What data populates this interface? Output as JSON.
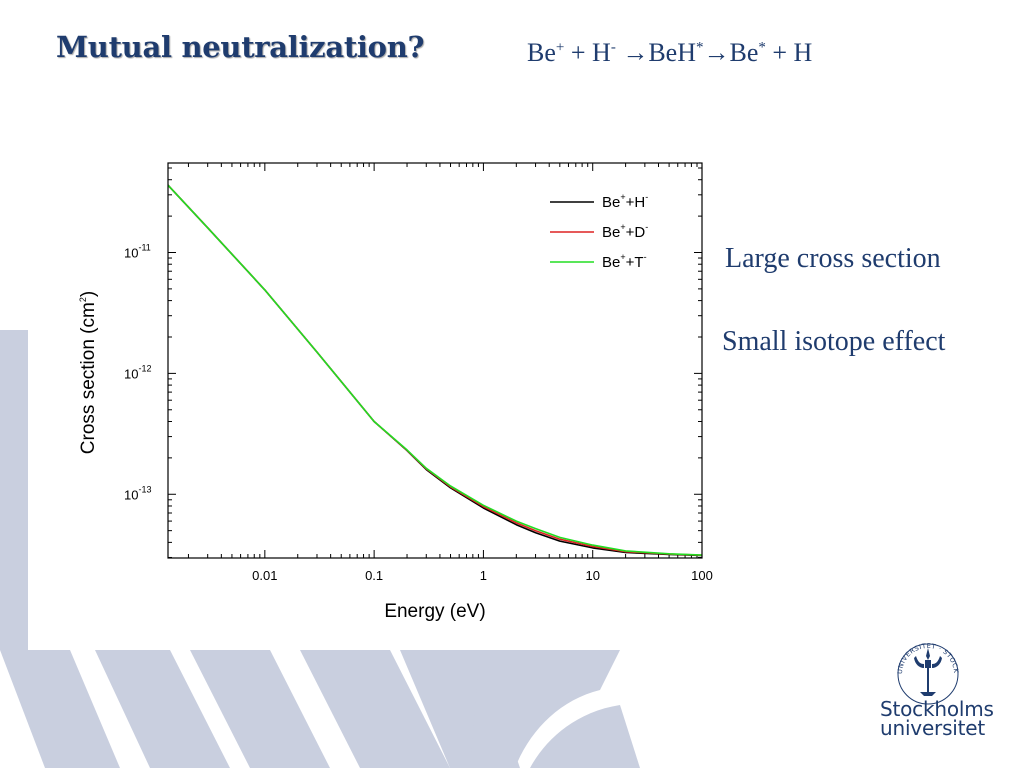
{
  "slide": {
    "title": "Mutual neutralization?",
    "equation": {
      "be": "Be",
      "be_charge": "+",
      "plus1": " + H",
      "h_charge": "-",
      "arrow1": " →BeH",
      "beh_star": "*",
      "arrow2": "→Be",
      "be_star": "*",
      "tail": " + H"
    },
    "notes": [
      "Large cross section",
      "Small isotope effect"
    ],
    "logo": {
      "line1": "Stockholms",
      "line2": "universitet",
      "ring_text": "UNIVERSITET · STOCKHOLMS"
    }
  },
  "colors": {
    "title": "#1f3c6e",
    "decor": "#c9cfdf",
    "H": "#000000",
    "D": "#dd2222",
    "T": "#22dd22"
  },
  "chart_data": {
    "type": "line",
    "x_scale": "log",
    "y_scale": "log",
    "xlim": [
      0.0013,
      100
    ],
    "ylim": [
      2.97e-14,
      5.5e-11
    ],
    "xlabel": "Energy (eV)",
    "ylabel": {
      "main": "Cross section (cm",
      "sup": "2",
      "end": ")"
    },
    "x_ticks": [
      {
        "value": 0.01,
        "label": "0.01"
      },
      {
        "value": 0.1,
        "label": "0.1"
      },
      {
        "value": 1,
        "label": "1"
      },
      {
        "value": 10,
        "label": "10"
      },
      {
        "value": 100,
        "label": "100"
      }
    ],
    "y_ticks": [
      {
        "value": 1e-11,
        "base": "10",
        "exp": "-11"
      },
      {
        "value": 1e-12,
        "base": "10",
        "exp": "-12"
      },
      {
        "value": 1e-13,
        "base": "10",
        "exp": "-13"
      }
    ],
    "legend_position": "top-right",
    "series": [
      {
        "key": "H",
        "name": "Be",
        "name_sup": "+",
        "name_mid": "+H",
        "name_sup2": "-",
        "x": [
          0.0013,
          0.003,
          0.01,
          0.03,
          0.1,
          0.2,
          0.3,
          0.5,
          1,
          2,
          3,
          5,
          10,
          20,
          50,
          100
        ],
        "y": [
          3.6e-11,
          1.6e-11,
          4.9e-12,
          1.5e-12,
          4e-13,
          2.3e-13,
          1.6e-13,
          1.13e-13,
          7.7e-14,
          5.6e-14,
          4.8e-14,
          4.1e-14,
          3.6e-14,
          3.3e-14,
          3.18e-14,
          3.12e-14
        ]
      },
      {
        "key": "D",
        "name": "Be",
        "name_sup": "+",
        "name_mid": "+D",
        "name_sup2": "-",
        "x": [
          0.0013,
          0.003,
          0.01,
          0.03,
          0.1,
          0.2,
          0.3,
          0.5,
          1,
          2,
          3,
          5,
          10,
          20,
          50,
          100
        ],
        "y": [
          3.6e-11,
          1.6e-11,
          4.9e-12,
          1.5e-12,
          4e-13,
          2.31e-13,
          1.62e-13,
          1.15e-13,
          7.9e-14,
          5.8e-14,
          5e-14,
          4.25e-14,
          3.7e-14,
          3.35e-14,
          3.2e-14,
          3.13e-14
        ]
      },
      {
        "key": "T",
        "name": "Be",
        "name_sup": "+",
        "name_mid": "+T",
        "name_sup2": "-",
        "x": [
          0.0013,
          0.003,
          0.01,
          0.03,
          0.1,
          0.2,
          0.3,
          0.5,
          1,
          2,
          3,
          5,
          10,
          20,
          50,
          100
        ],
        "y": [
          3.6e-11,
          1.6e-11,
          4.9e-12,
          1.5e-12,
          4e-13,
          2.33e-13,
          1.64e-13,
          1.17e-13,
          8.1e-14,
          6e-14,
          5.2e-14,
          4.4e-14,
          3.8e-14,
          3.4e-14,
          3.22e-14,
          3.14e-14
        ]
      }
    ]
  }
}
